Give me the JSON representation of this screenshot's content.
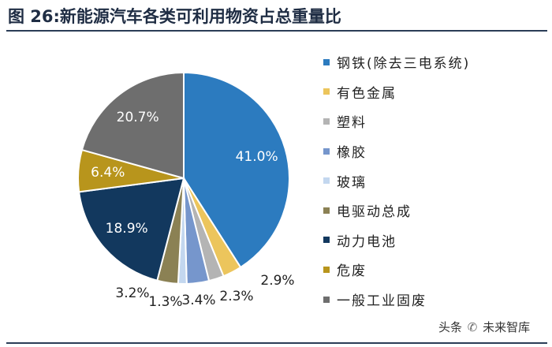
{
  "figure": {
    "title": "图 26:新能源汽车各类可利用物资占总重量比"
  },
  "chart_data": {
    "type": "pie",
    "title": "新能源汽车各类可利用物资占总重量比",
    "slices": [
      {
        "label": "钢铁(除去三电系统)",
        "value": 41.0,
        "display": "41.0%",
        "color": "#2c7bbf"
      },
      {
        "label": "有色金属",
        "value": 2.9,
        "display": "2.9%",
        "color": "#ecc55c"
      },
      {
        "label": "塑料",
        "value": 2.3,
        "display": "2.3%",
        "color": "#b4b4b4"
      },
      {
        "label": "橡胶",
        "value": 3.4,
        "display": "3.4%",
        "color": "#7696cc"
      },
      {
        "label": "玻璃",
        "value": 1.3,
        "display": "1.3%",
        "color": "#c3d7ef"
      },
      {
        "label": "电驱动总成",
        "value": 3.2,
        "display": "3.2%",
        "color": "#8b8154"
      },
      {
        "label": "动力电池",
        "value": 18.9,
        "display": "18.9%",
        "color": "#12385e"
      },
      {
        "label": "危废",
        "value": 6.4,
        "display": "6.4%",
        "color": "#b8951c"
      },
      {
        "label": "一般工业固废",
        "value": 20.7,
        "display": "20.7%",
        "color": "#6e6e6e"
      }
    ],
    "legend_position": "right"
  },
  "watermark": {
    "prefix": "头条",
    "icon": "wechat-icon",
    "name": "未来智库"
  }
}
